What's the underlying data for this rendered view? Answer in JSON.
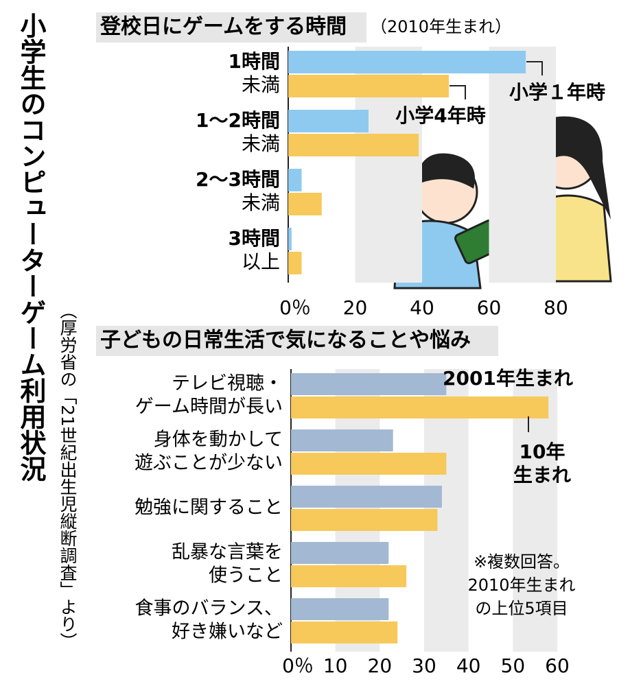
{
  "title": "小学生のコンピューターゲーム利用状況",
  "source": "（厚労省の「21世紀出生児縦断調査」より）",
  "chart_data": [
    {
      "type": "bar",
      "orientation": "horizontal",
      "title": "登校日にゲームをする時間",
      "subtitle": "（2010年生まれ）",
      "categories": [
        [
          "1時間",
          "未満"
        ],
        [
          "1〜2時間",
          "未満"
        ],
        [
          "2〜3時間",
          "未満"
        ],
        [
          "3時間",
          "以上"
        ]
      ],
      "series": [
        {
          "name": [
            "小学１年時"
          ],
          "color": "#8ecaf0",
          "values": [
            71,
            24,
            4,
            1
          ]
        },
        {
          "name": [
            "小学4年時"
          ],
          "color": "#f7c85a",
          "values": [
            48,
            39,
            10,
            4
          ]
        }
      ],
      "xlim": [
        0,
        80
      ],
      "xticks": [
        {
          "value": 0,
          "label": "0％"
        },
        20,
        40,
        60,
        80
      ],
      "grid": true
    },
    {
      "type": "bar",
      "orientation": "horizontal",
      "title": "子どもの日常生活で気になることや悩み",
      "categories": [
        [
          "テレビ視聴・",
          "ゲーム時間が長い"
        ],
        [
          "身体を動かして",
          "遊ぶことが少ない"
        ],
        [
          "勉強に関すること"
        ],
        [
          "乱暴な言葉を",
          "使うこと"
        ],
        [
          "食事のバランス、",
          "好き嫌いなど"
        ]
      ],
      "series": [
        {
          "name": [
            "2001年生まれ"
          ],
          "color": "#a3b8d2",
          "values": [
            35,
            23,
            34,
            22,
            22
          ]
        },
        {
          "name": [
            "10年",
            "生まれ"
          ],
          "color": "#f7c85a",
          "values": [
            58,
            35,
            33,
            26,
            24
          ]
        }
      ],
      "xlim": [
        0,
        60
      ],
      "xticks": [
        {
          "value": 0,
          "label": "0％"
        },
        10,
        20,
        30,
        40,
        50,
        60
      ],
      "grid": true,
      "annotation": [
        "※複数回答。",
        "2010年生まれ",
        "の上位5項目"
      ]
    }
  ]
}
